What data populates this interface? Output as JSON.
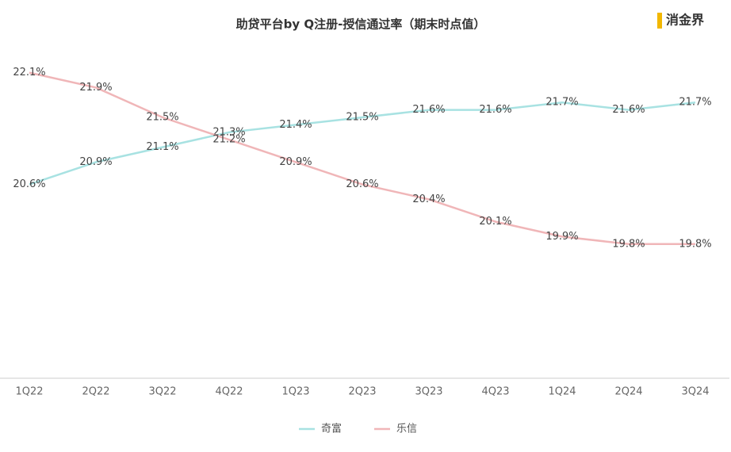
{
  "chart_data": {
    "type": "line",
    "title": "助贷平台by Q注册-授信通过率（期末时点值）",
    "logo": "消金界",
    "categories": [
      "1Q22",
      "2Q22",
      "3Q22",
      "4Q22",
      "1Q23",
      "2Q23",
      "3Q23",
      "4Q23",
      "1Q24",
      "2Q24",
      "3Q24"
    ],
    "series": [
      {
        "name": "奇富",
        "color": "#a8e2e2",
        "values": [
          20.6,
          20.9,
          21.1,
          21.3,
          21.4,
          21.5,
          21.6,
          21.6,
          21.7,
          21.6,
          21.7
        ],
        "value_labels": [
          "20.6%",
          "20.9%",
          "21.1%",
          "21.3%",
          "21.4%",
          "21.5%",
          "21.6%",
          "21.6%",
          "21.7%",
          "21.6%",
          "21.7%"
        ]
      },
      {
        "name": "乐信",
        "color": "#f0b6b8",
        "values": [
          22.1,
          21.9,
          21.5,
          21.2,
          20.9,
          20.6,
          20.4,
          20.1,
          19.9,
          19.8,
          19.8
        ],
        "value_labels": [
          "22.1%",
          "21.9%",
          "21.5%",
          "21.2%",
          "20.9%",
          "20.6%",
          "20.4%",
          "20.1%",
          "19.9%",
          "19.8%",
          "19.8%"
        ]
      }
    ],
    "ylim": [
      18,
      22.5
    ]
  }
}
